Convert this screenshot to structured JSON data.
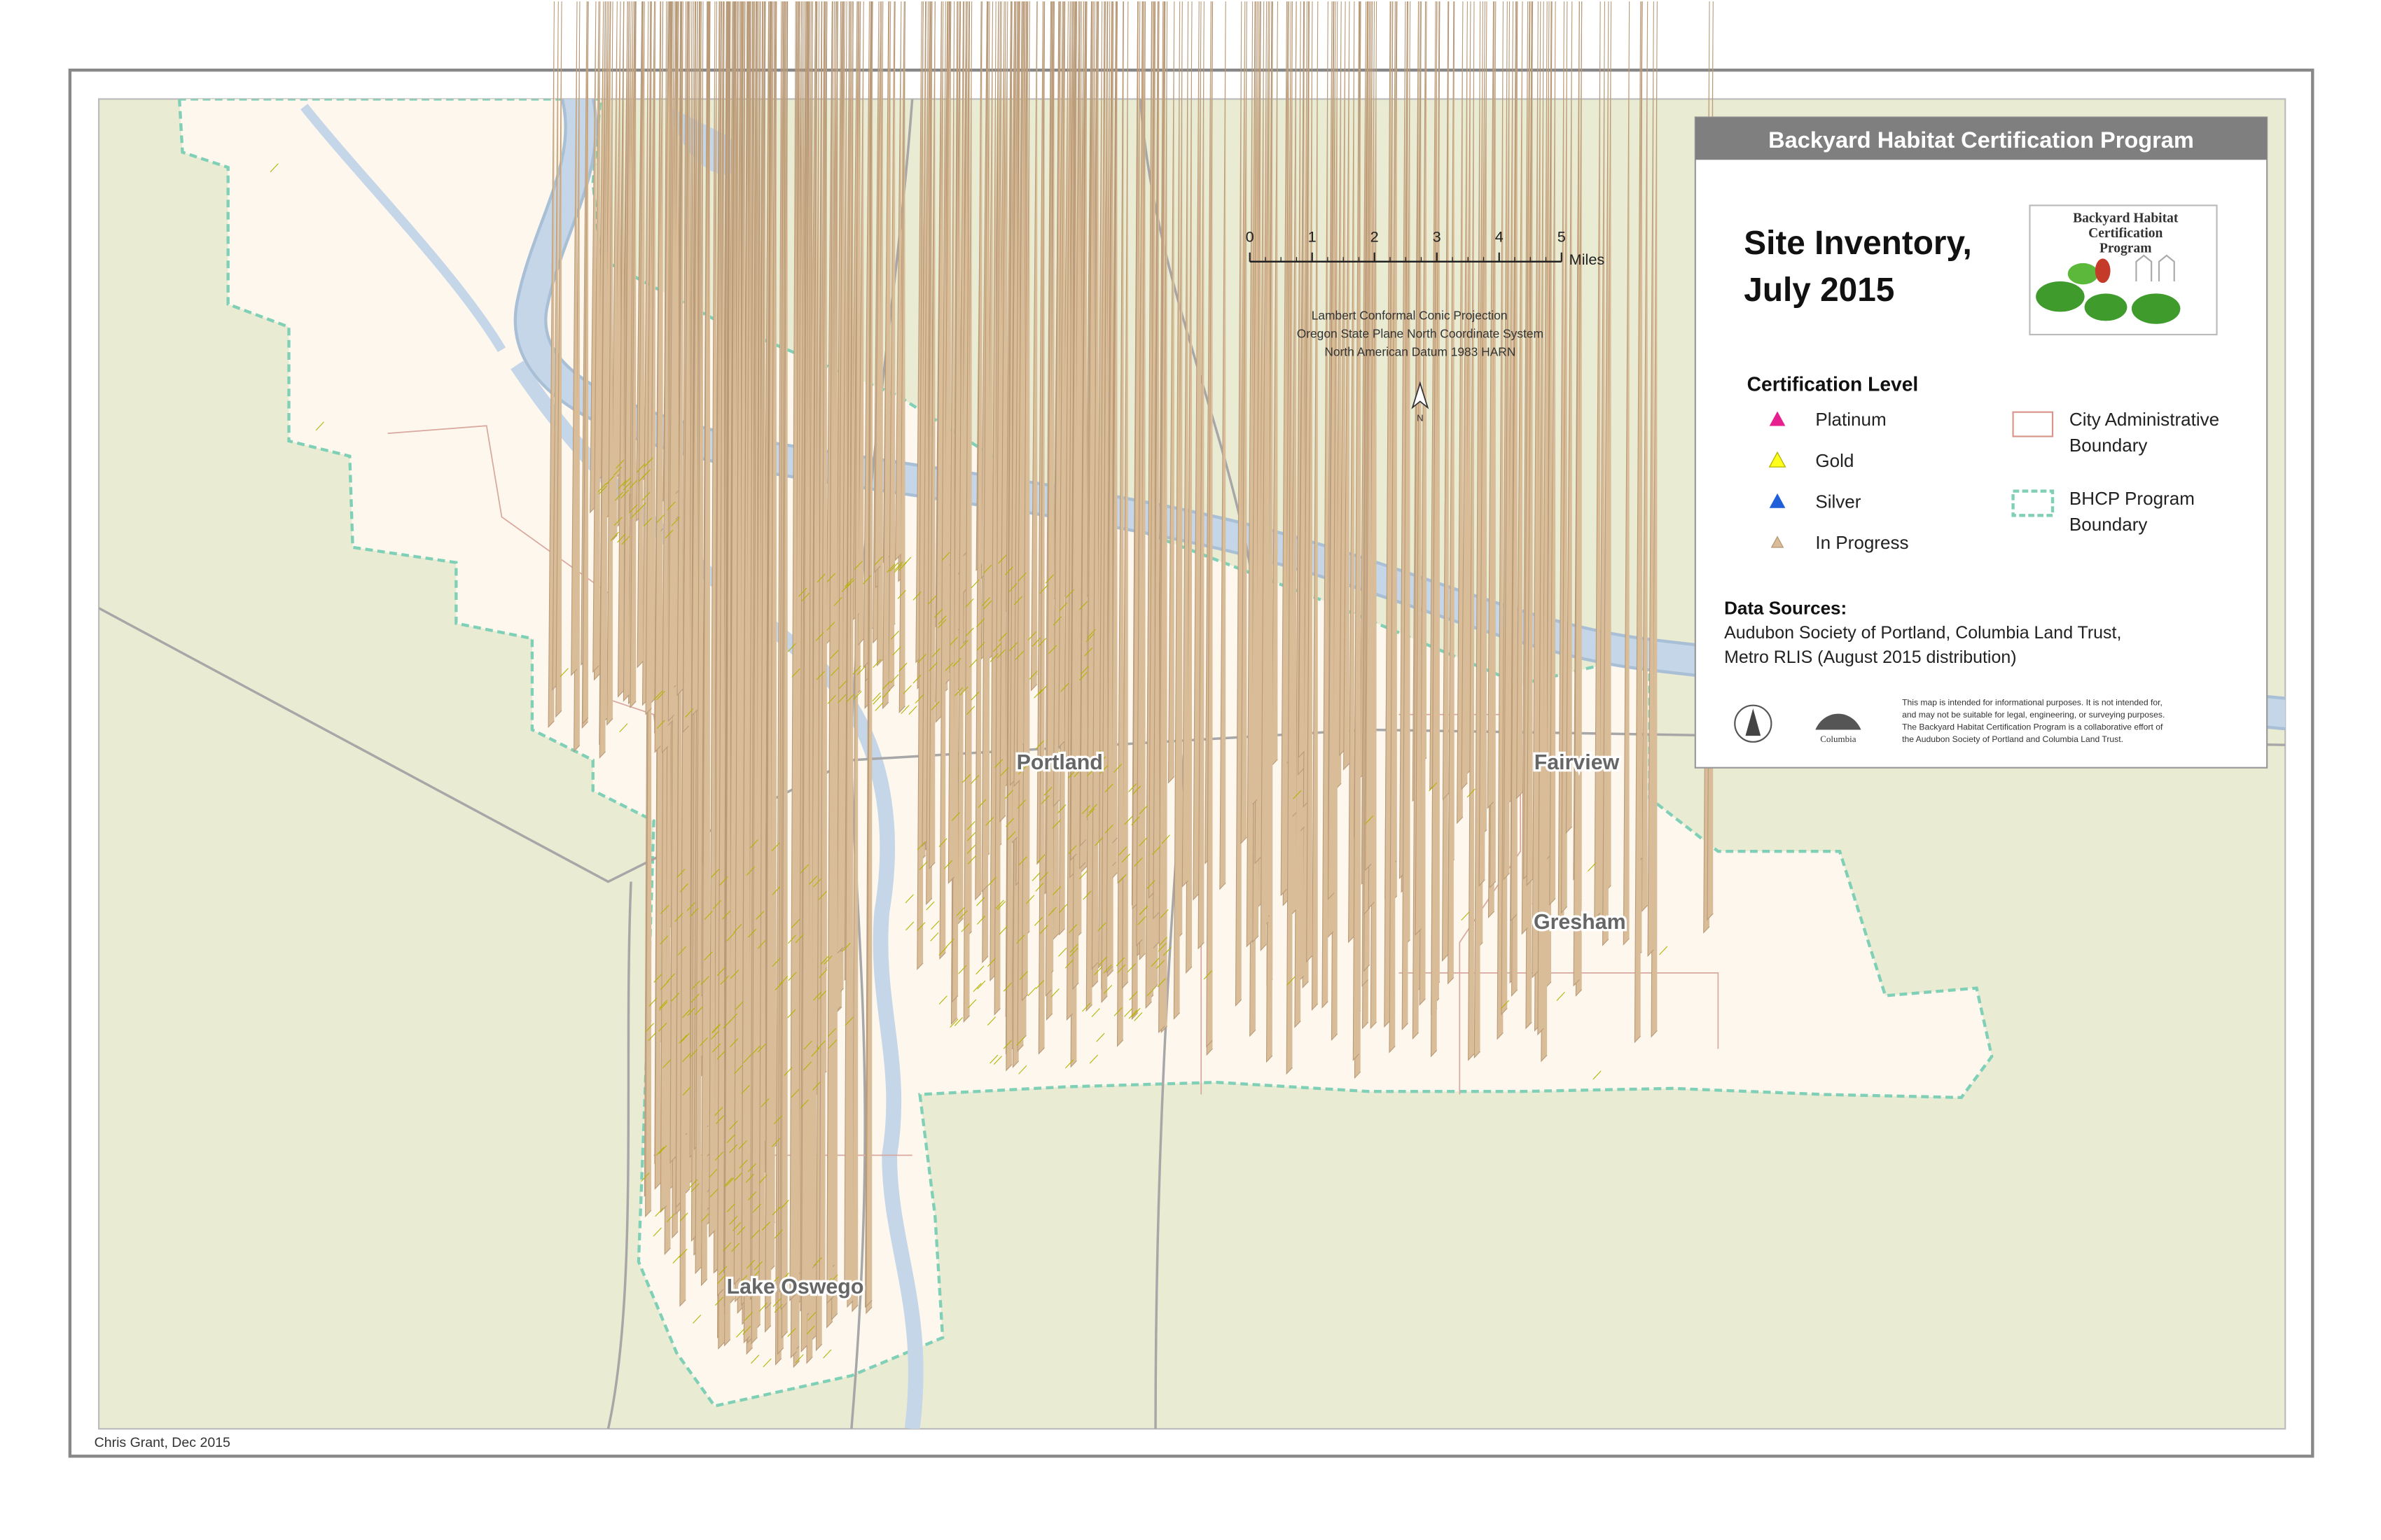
{
  "header": {
    "title": "Backyard Habitat Certification Program"
  },
  "map_title": {
    "lines": [
      "Site Inventory,",
      "July 2015"
    ]
  },
  "logo": {
    "lines": [
      "Backyard Habitat",
      "Certification",
      "Program"
    ],
    "partner": "Columbia"
  },
  "legend": {
    "title": "Certification Level",
    "items": [
      {
        "label": "Platinum",
        "color": "#e6208f"
      },
      {
        "label": "Gold",
        "color": "#ffff1a"
      },
      {
        "label": "Silver",
        "color": "#1f5fd9"
      },
      {
        "label": "In Progress",
        "color": "#d9bc98"
      }
    ],
    "boundaries": [
      {
        "lines": [
          "City Administrative",
          "Boundary"
        ],
        "color": "#d9958a"
      },
      {
        "lines": [
          "BHCP Program",
          "Boundary"
        ],
        "color": "#7fd0b6"
      }
    ]
  },
  "data_sources": {
    "title": "Data Sources:",
    "lines": [
      "Audubon Society of Portland, Columbia Land Trust,",
      "Metro RLIS (August 2015 distribution)"
    ]
  },
  "disclaimer": {
    "lines": [
      "This map is intended for informational purposes. It is not intended for,",
      "and may not be suitable for legal, engineering, or surveying purposes.",
      "The Backyard Habitat Certification Program is a collaborative effort of",
      "the Audubon Society of Portland and Columbia Land Trust."
    ]
  },
  "scale_bar": {
    "ticks": [
      0,
      1,
      2,
      3,
      4,
      5
    ],
    "unit": "Miles"
  },
  "projection": {
    "lines": [
      "Lambert Conformal Conic Projection",
      "Oregon State Plane North Coordinate System",
      "North American Datum 1983 HARN"
    ]
  },
  "north": "N",
  "city_labels": [
    "Portland",
    "Fairview",
    "Gresham",
    "Lake Oswego"
  ],
  "credit": "Chris Grant, Dec 2015"
}
